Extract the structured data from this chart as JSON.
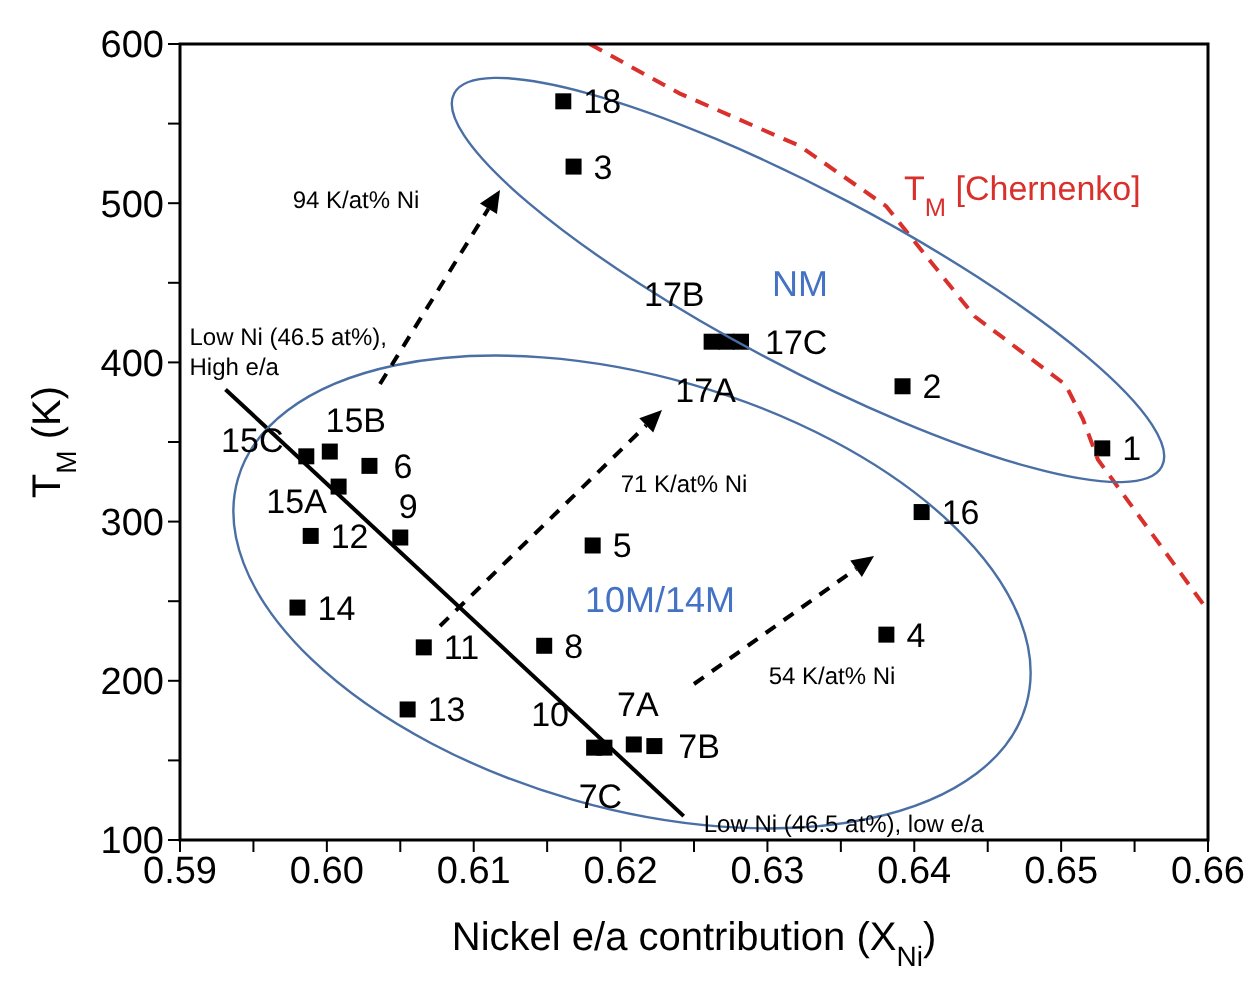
{
  "chart_data": {
    "type": "scatter",
    "xlabel": "Nickel e/a contribution (X$_{Ni}$)",
    "ylabel": "T$_{M}$ (K)",
    "xlim": [
      0.59,
      0.66
    ],
    "ylim": [
      100,
      600
    ],
    "xticks": [
      0.59,
      {
        "value": 0.595,
        "label": null
      },
      {
        "value": 0.6,
        "label": "0.60"
      },
      {
        "value": 0.605,
        "label": null
      },
      0.61,
      {
        "value": 0.615,
        "label": null
      },
      0.62,
      {
        "value": 0.625,
        "label": null
      },
      0.63,
      {
        "value": 0.635,
        "label": null
      },
      0.64,
      {
        "value": 0.645,
        "label": null
      },
      0.65,
      {
        "value": 0.655,
        "label": null
      },
      0.66
    ],
    "yticks": [
      100,
      {
        "value": 150,
        "label": null
      },
      200,
      {
        "value": 250,
        "label": null
      },
      300,
      {
        "value": 350,
        "label": null
      },
      400,
      {
        "value": 450,
        "label": null
      },
      500,
      {
        "value": 550,
        "label": null
      },
      600
    ],
    "grid": false,
    "legend": false,
    "marker": "square",
    "series": [
      {
        "color": "#000000",
        "x": [
          0.6161,
          0.6168,
          0.6262,
          0.6272,
          0.6282,
          0.6392,
          0.6528,
          0.6405,
          0.6381,
          0.5986,
          0.6002,
          0.6029,
          0.6008,
          0.5989,
          0.605,
          0.598,
          0.6066,
          0.6148,
          0.6181,
          0.6055,
          0.6182,
          0.6189,
          0.6209,
          0.6223
        ],
        "values": [
          564,
          523,
          413,
          413,
          413,
          385,
          346,
          306,
          229,
          341,
          344,
          335,
          322,
          291,
          290,
          246,
          221,
          222,
          285,
          182,
          158,
          158,
          160,
          159
        ]
      },
      {
        "type": "line",
        "name": "T$_{M}$ [Chernenko]",
        "color": "#d9302c",
        "line_style": "dashed",
        "marker": "none",
        "x": [
          0.6179,
          0.624,
          0.6322,
          0.6381,
          0.6441,
          0.6503,
          0.6515,
          0.6525,
          0.66
        ],
        "values": [
          600,
          569,
          536,
          498,
          429,
          386,
          364,
          339,
          244
        ]
      },
      {
        "type": "line",
        "color": "#000000",
        "line_style": "solid",
        "marker": "none",
        "x": [
          0.5931,
          0.6243
        ],
        "values": [
          383,
          115
        ]
      }
    ],
    "annotations": [
      {
        "text": "18",
        "x": 0.6161,
        "y": 564
      },
      {
        "text": "3",
        "x": 0.6168,
        "y": 523
      },
      {
        "text": "17A",
        "x": 0.6262,
        "y": 413
      },
      {
        "text": "17B",
        "x": 0.6272,
        "y": 413
      },
      {
        "text": "17C",
        "x": 0.6282,
        "y": 413
      },
      {
        "text": "2",
        "x": 0.6392,
        "y": 385
      },
      {
        "text": "1",
        "x": 0.6528,
        "y": 346
      },
      {
        "text": "16",
        "x": 0.6405,
        "y": 306
      },
      {
        "text": "4",
        "x": 0.6381,
        "y": 229
      },
      {
        "text": "15C",
        "x": 0.5986,
        "y": 341
      },
      {
        "text": "15B",
        "x": 0.6002,
        "y": 344
      },
      {
        "text": "6",
        "x": 0.6029,
        "y": 335
      },
      {
        "text": "15A",
        "x": 0.6008,
        "y": 322
      },
      {
        "text": "12",
        "x": 0.5989,
        "y": 291
      },
      {
        "text": "9",
        "x": 0.605,
        "y": 290
      },
      {
        "text": "14",
        "x": 0.598,
        "y": 246
      },
      {
        "text": "11",
        "x": 0.6066,
        "y": 221
      },
      {
        "text": "8",
        "x": 0.6148,
        "y": 222
      },
      {
        "text": "5",
        "x": 0.6181,
        "y": 285
      },
      {
        "text": "13",
        "x": 0.6055,
        "y": 182
      },
      {
        "text": "10",
        "x": 0.6182,
        "y": 158
      },
      {
        "text": "7C",
        "x": 0.6189,
        "y": 158
      },
      {
        "text": "7A",
        "x": 0.6209,
        "y": 160
      },
      {
        "text": "7B",
        "x": 0.6223,
        "y": 159
      },
      "NM",
      "10M/14M",
      "94 K/at% Ni",
      "71 K/at% Ni",
      "54 K/at% Ni",
      {
        "text": "Low Ni (46.5 at%), High e/a",
        "x": 0.5931,
        "y": 383
      },
      {
        "text": "Low Ni (46.5 at%), low e/a",
        "x": 0.6243,
        "y": 115
      }
    ]
  }
}
